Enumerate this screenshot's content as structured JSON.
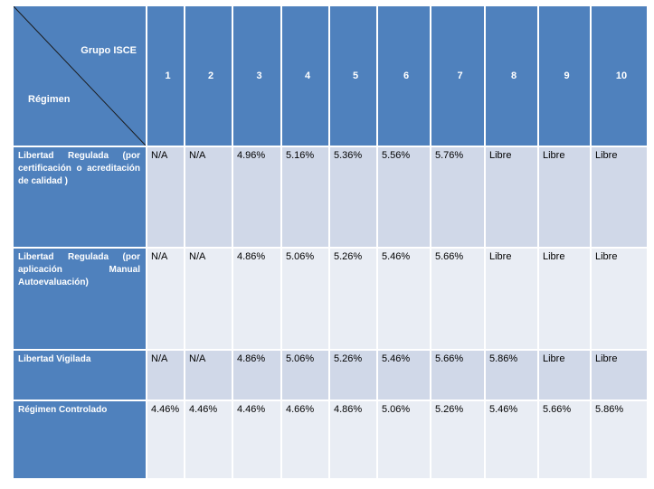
{
  "table": {
    "corner": {
      "column_header_label": "Grupo ISCE",
      "row_header_label": "Régimen"
    },
    "columns": [
      "1",
      "2",
      "3",
      "4",
      "5",
      "6",
      "7",
      "8",
      "9",
      "10"
    ],
    "rows": [
      {
        "label": "Libertad Regulada (por certificación o acreditación de calidad )",
        "values": [
          "N/A",
          "N/A",
          "4.96%",
          "5.16%",
          "5.36%",
          "5.56%",
          "5.76%",
          "Libre",
          "Libre",
          "Libre"
        ]
      },
      {
        "label": "Libertad Regulada (por aplicación Manual Autoevaluación)",
        "values": [
          "N/A",
          "N/A",
          "4.86%",
          "5.06%",
          "5.26%",
          "5.46%",
          "5.66%",
          "Libre",
          "Libre",
          "Libre"
        ]
      },
      {
        "label": "Libertad Vigilada",
        "values": [
          "N/A",
          "N/A",
          "4.86%",
          "5.06%",
          "5.26%",
          "5.46%",
          "5.66%",
          "5.86%",
          "Libre",
          "Libre"
        ]
      },
      {
        "label": "Régimen Controlado",
        "values": [
          "4.46%",
          "4.46%",
          "4.46%",
          "4.66%",
          "4.86%",
          "5.06%",
          "5.26%",
          "5.46%",
          "5.66%",
          "5.86%"
        ]
      }
    ]
  },
  "colors": {
    "header": "#4f81bd",
    "row_odd": "#d0d8e8",
    "row_even": "#e9edf4"
  }
}
